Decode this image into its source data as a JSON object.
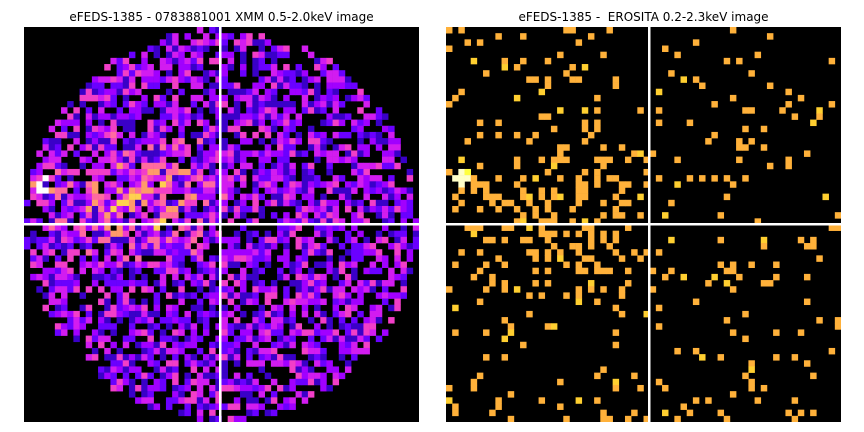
{
  "panels": [
    {
      "title": "eFEDS-1385 - 0783881001 XMM 0.5-2.0keV image",
      "colormap": [
        "#000000",
        "#3a00c8",
        "#6a00ff",
        "#a100ff",
        "#d21cf0",
        "#f23ec8",
        "#ff6aa0",
        "#ff9a6a",
        "#ffd050",
        "#ffffff"
      ],
      "crosshair_color": "#ffffff"
    },
    {
      "title": "eFEDS-1385 -  EROSITA 0.2-2.3keV image",
      "colormap": [
        "#000000",
        "#ffb13a",
        "#ffcf30",
        "#ffff40",
        "#ffffc8"
      ],
      "crosshair_color": "#ffffff"
    }
  ]
}
